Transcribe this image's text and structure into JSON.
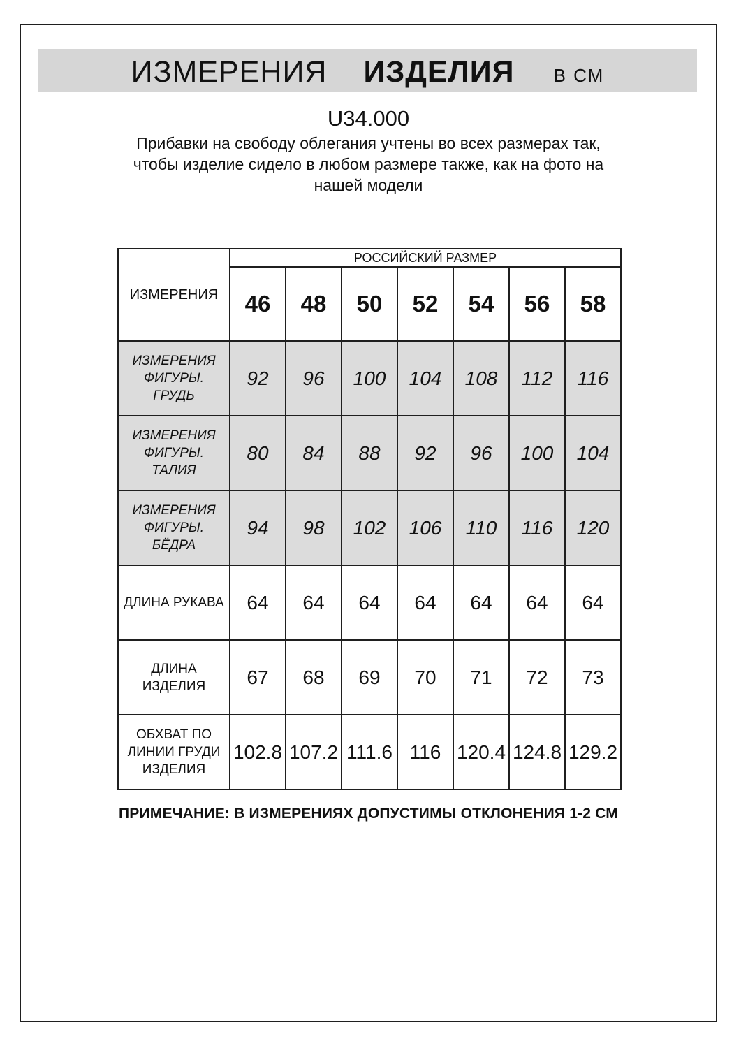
{
  "header": {
    "title_word1": "ИЗМЕРЕНИЯ",
    "title_word2": "ИЗДЕЛИЯ",
    "title_unit": "В СМ",
    "article": "U34.000",
    "description": "Прибавки на свободу облегания учтены во всех размерах так, чтобы изделие сидело в любом размере также, как на фото на нашей модели"
  },
  "table": {
    "corner_header": "ИЗМЕРЕНИЯ",
    "group_header": "РОССИЙСКИЙ РАЗМЕР",
    "sizes": [
      "46",
      "48",
      "50",
      "52",
      "54",
      "56",
      "58"
    ],
    "rows": [
      {
        "label": "ИЗМЕРЕНИЯ ФИГУРЫ. ГРУДЬ",
        "values": [
          "92",
          "96",
          "100",
          "104",
          "108",
          "112",
          "116"
        ],
        "shaded": true,
        "italic": true
      },
      {
        "label": "ИЗМЕРЕНИЯ ФИГУРЫ. ТАЛИЯ",
        "values": [
          "80",
          "84",
          "88",
          "92",
          "96",
          "100",
          "104"
        ],
        "shaded": true,
        "italic": true
      },
      {
        "label": "ИЗМЕРЕНИЯ ФИГУРЫ. БЁДРА",
        "values": [
          "94",
          "98",
          "102",
          "106",
          "110",
          "116",
          "120"
        ],
        "shaded": true,
        "italic": true
      },
      {
        "label": "ДЛИНА РУКАВА",
        "values": [
          "64",
          "64",
          "64",
          "64",
          "64",
          "64",
          "64"
        ],
        "shaded": false,
        "italic": false
      },
      {
        "label": "ДЛИНА ИЗДЕЛИЯ",
        "values": [
          "67",
          "68",
          "69",
          "70",
          "71",
          "72",
          "73"
        ],
        "shaded": false,
        "italic": false
      },
      {
        "label": "ОБХВАТ ПО ЛИНИИ ГРУДИ ИЗДЕЛИЯ",
        "values": [
          "102.8",
          "107.2",
          "111.6",
          "116",
          "120.4",
          "124.8",
          "129.2"
        ],
        "shaded": false,
        "italic": false
      }
    ]
  },
  "note": "ПРИМЕЧАНИЕ: В ИЗМЕРЕНИЯХ ДОПУСТИМЫ ОТКЛОНЕНИЯ 1-2 СМ",
  "colors": {
    "banner_bg": "#d6d6d6",
    "shaded_row_bg": "#dcdcdc",
    "border": "#1f1f1f",
    "text": "#111111"
  }
}
